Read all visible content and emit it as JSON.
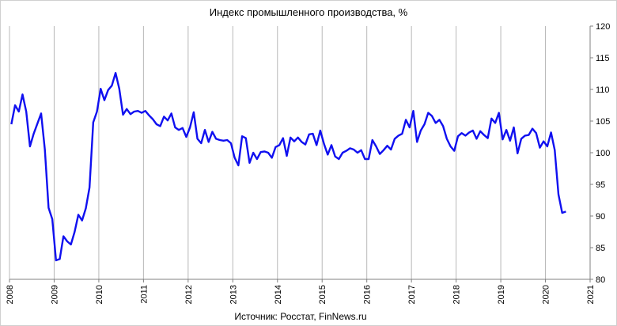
{
  "chart_data": {
    "type": "line",
    "title": "Индекс промышленного производства, %",
    "source": "Источник: Росстат, FinNews.ru",
    "xlabel": "",
    "ylabel": "",
    "x_ticks": [
      "2008",
      "2009",
      "2010",
      "2011",
      "2012",
      "2013",
      "2014",
      "2015",
      "2016",
      "2017",
      "2018",
      "2019",
      "2020",
      "2021"
    ],
    "y_ticks": [
      "80",
      "85",
      "90",
      "95",
      "100",
      "105",
      "110",
      "115",
      "120"
    ],
    "xlim": [
      2008,
      2021
    ],
    "ylim": [
      80,
      120
    ],
    "y_axis_position": "right",
    "grid": "vertical",
    "legend": "none",
    "series": [
      {
        "color": "#1010f0",
        "x": [
          "2008-01",
          "2008-02",
          "2008-03",
          "2008-04",
          "2008-05",
          "2008-06",
          "2008-07",
          "2008-08",
          "2008-09",
          "2008-10",
          "2008-11",
          "2008-12",
          "2009-01",
          "2009-02",
          "2009-03",
          "2009-04",
          "2009-05",
          "2009-06",
          "2009-07",
          "2009-08",
          "2009-09",
          "2009-10",
          "2009-11",
          "2009-12",
          "2010-01",
          "2010-02",
          "2010-03",
          "2010-04",
          "2010-05",
          "2010-06",
          "2010-07",
          "2010-08",
          "2010-09",
          "2010-10",
          "2010-11",
          "2010-12",
          "2011-01",
          "2011-02",
          "2011-03",
          "2011-04",
          "2011-05",
          "2011-06",
          "2011-07",
          "2011-08",
          "2011-09",
          "2011-10",
          "2011-11",
          "2011-12",
          "2012-01",
          "2012-02",
          "2012-03",
          "2012-04",
          "2012-05",
          "2012-06",
          "2012-07",
          "2012-08",
          "2012-09",
          "2012-10",
          "2012-11",
          "2012-12",
          "2013-01",
          "2013-02",
          "2013-03",
          "2013-04",
          "2013-05",
          "2013-06",
          "2013-07",
          "2013-08",
          "2013-09",
          "2013-10",
          "2013-11",
          "2013-12",
          "2014-01",
          "2014-02",
          "2014-03",
          "2014-04",
          "2014-05",
          "2014-06",
          "2014-07",
          "2014-08",
          "2014-09",
          "2014-10",
          "2014-11",
          "2014-12",
          "2015-01",
          "2015-02",
          "2015-03",
          "2015-04",
          "2015-05",
          "2015-06",
          "2015-07",
          "2015-08",
          "2015-09",
          "2015-10",
          "2015-11",
          "2015-12",
          "2016-01",
          "2016-02",
          "2016-03",
          "2016-04",
          "2016-05",
          "2016-06",
          "2016-07",
          "2016-08",
          "2016-09",
          "2016-10",
          "2016-11",
          "2016-12",
          "2017-01",
          "2017-02",
          "2017-03",
          "2017-04",
          "2017-05",
          "2017-06",
          "2017-07",
          "2017-08",
          "2017-09",
          "2017-10",
          "2017-11",
          "2017-12",
          "2018-01",
          "2018-02",
          "2018-03",
          "2018-04",
          "2018-05",
          "2018-06",
          "2018-07",
          "2018-08",
          "2018-09",
          "2018-10",
          "2018-11",
          "2018-12",
          "2019-01",
          "2019-02",
          "2019-03",
          "2019-04",
          "2019-05",
          "2019-06",
          "2019-07",
          "2019-08",
          "2019-09",
          "2019-10",
          "2019-11",
          "2019-12",
          "2020-01",
          "2020-02",
          "2020-03",
          "2020-04",
          "2020-05",
          "2020-06"
        ],
        "values": [
          104.5,
          107.5,
          106.5,
          109.2,
          106.5,
          101.0,
          103.0,
          104.6,
          106.2,
          100.5,
          91.3,
          89.5,
          83.0,
          83.2,
          86.8,
          86.0,
          85.5,
          87.5,
          90.2,
          89.3,
          91.2,
          94.5,
          104.8,
          106.5,
          110.1,
          108.3,
          109.9,
          110.6,
          112.6,
          110.1,
          106.0,
          106.9,
          106.1,
          106.5,
          106.6,
          106.3,
          106.6,
          105.9,
          105.3,
          104.5,
          104.2,
          105.7,
          105.1,
          106.2,
          104.0,
          103.6,
          103.9,
          102.5,
          104.0,
          106.4,
          102.2,
          101.5,
          103.6,
          101.7,
          103.3,
          102.2,
          102.0,
          101.9,
          102.0,
          101.5,
          99.2,
          98.0,
          102.6,
          102.3,
          98.4,
          100.0,
          99.0,
          100.1,
          100.2,
          100.0,
          99.2,
          100.9,
          101.2,
          102.3,
          99.5,
          102.4,
          101.8,
          102.4,
          101.7,
          101.3,
          102.9,
          103.0,
          101.2,
          103.5,
          101.4,
          99.7,
          101.2,
          99.4,
          99.0,
          100.0,
          100.3,
          100.7,
          100.5,
          100.0,
          100.4,
          99.0,
          99.0,
          102.0,
          101.0,
          99.8,
          100.4,
          101.1,
          100.5,
          102.2,
          102.7,
          103.0,
          105.2,
          104.0,
          106.6,
          101.7,
          103.5,
          104.5,
          106.3,
          105.8,
          104.7,
          105.2,
          104.2,
          102.2,
          101.0,
          100.3,
          102.6,
          103.1,
          102.7,
          103.2,
          103.5,
          102.2,
          103.4,
          102.8,
          102.3,
          105.4,
          104.7,
          106.3,
          102.1,
          103.6,
          101.9,
          104.0,
          99.9,
          102.2,
          102.7,
          102.8,
          103.8,
          103.1,
          100.8,
          101.8,
          101.0,
          103.2,
          100.4,
          93.4,
          90.5,
          90.7
        ]
      }
    ]
  }
}
